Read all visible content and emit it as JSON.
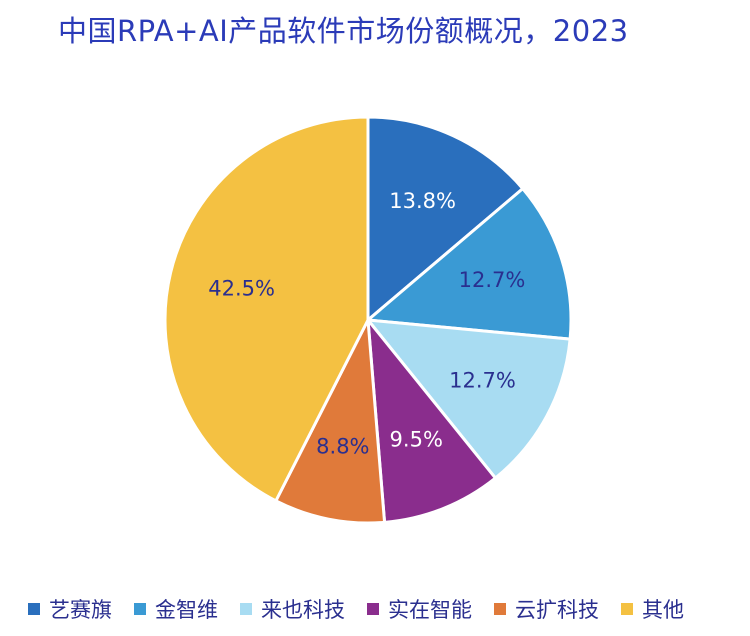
{
  "chart_data": {
    "type": "pie",
    "title": "中国RPA+AI产品软件市场份额概况，2023",
    "categories": [
      "艺赛旗",
      "金智维",
      "来也科技",
      "实在智能",
      "云扩科技",
      "其他"
    ],
    "values": [
      13.8,
      12.7,
      12.7,
      9.5,
      8.8,
      42.5
    ],
    "data_labels": [
      "13.8%",
      "12.7%",
      "12.7%",
      "9.5%",
      "8.8%",
      "42.5%"
    ],
    "colors": [
      "#2a6fbd",
      "#3a9ad4",
      "#a8dcf2",
      "#8a2d8d",
      "#e07a3a",
      "#f4c142"
    ],
    "label_colors": [
      "#ffffff",
      "#2a2f8f",
      "#2a2f8f",
      "#ffffff",
      "#2a2f8f",
      "#2a2f8f"
    ],
    "legend_position": "bottom",
    "start_angle": "12 o'clock",
    "direction": "clockwise"
  }
}
